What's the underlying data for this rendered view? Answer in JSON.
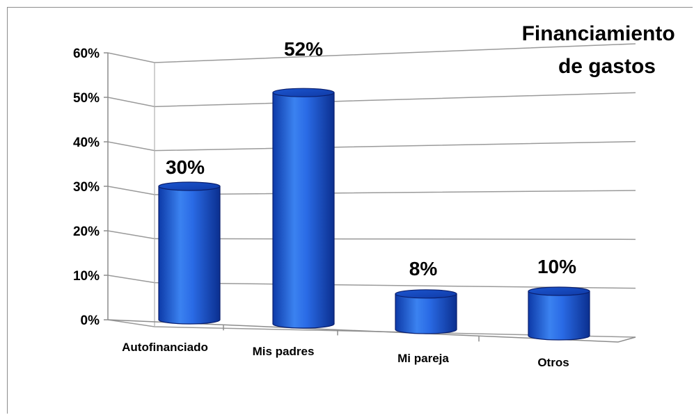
{
  "chart_data": {
    "type": "bar",
    "title_lines": [
      "Financiamiento",
      "de gastos"
    ],
    "categories": [
      "Autofinanciado",
      "Mis padres",
      "Mi pareja",
      "Otros"
    ],
    "values": [
      30,
      52,
      8,
      10
    ],
    "data_labels": [
      "30%",
      "52%",
      "8%",
      "10%"
    ],
    "y_ticks": [
      "0%",
      "10%",
      "20%",
      "30%",
      "40%",
      "50%",
      "60%"
    ],
    "ylim": [
      0,
      60
    ],
    "grid": true,
    "legend": "none",
    "bar_color": "#1a5fd6",
    "bar_edge_color": "#0a1f6e"
  }
}
